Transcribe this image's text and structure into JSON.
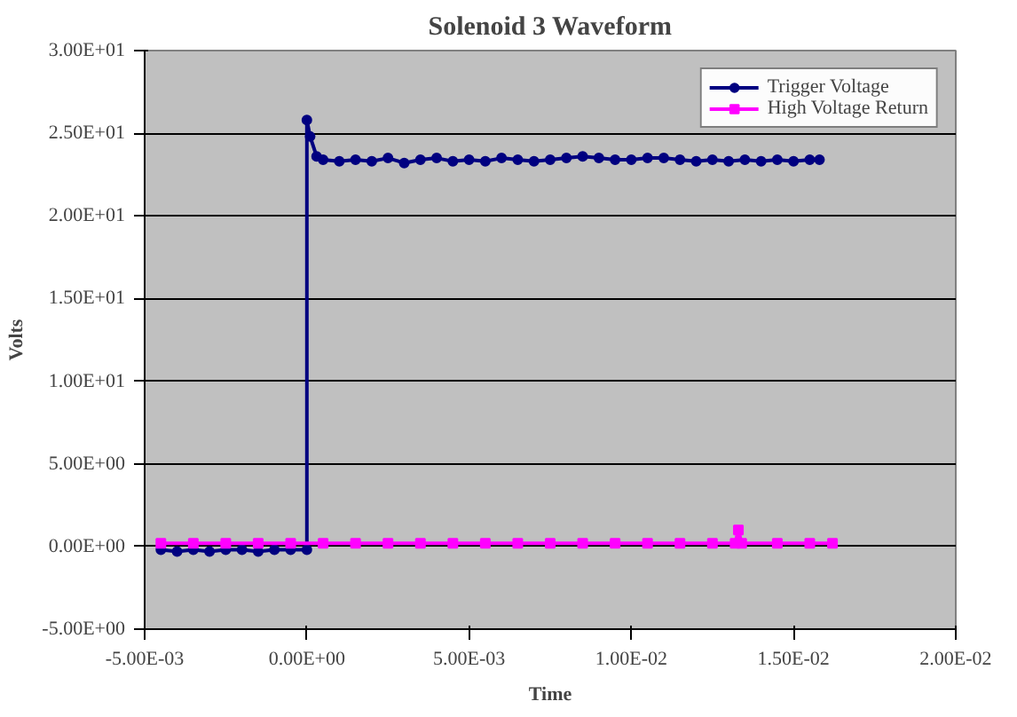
{
  "chart_data": {
    "type": "line",
    "title": "Solenoid 3 Waveform",
    "xlabel": "Time",
    "ylabel": "Volts",
    "xlim": [
      -0.005,
      0.02
    ],
    "ylim": [
      -5,
      30
    ],
    "xticks": [
      {
        "value": -0.005,
        "label": "-5.00E-03"
      },
      {
        "value": 0,
        "label": "0.00E+00"
      },
      {
        "value": 0.005,
        "label": "5.00E-03"
      },
      {
        "value": 0.01,
        "label": "1.00E-02"
      },
      {
        "value": 0.015,
        "label": "1.50E-02"
      },
      {
        "value": 0.02,
        "label": "2.00E-02"
      }
    ],
    "yticks": [
      {
        "value": -5,
        "label": "-5.00E+00"
      },
      {
        "value": 0,
        "label": "0.00E+00"
      },
      {
        "value": 5,
        "label": "5.00E+00"
      },
      {
        "value": 10,
        "label": "1.00E+01"
      },
      {
        "value": 15,
        "label": "1.50E+01"
      },
      {
        "value": 20,
        "label": "2.00E+01"
      },
      {
        "value": 25,
        "label": "2.50E+01"
      },
      {
        "value": 30,
        "label": "3.00E+01"
      }
    ],
    "grid": "y",
    "legend": "top right",
    "series": [
      {
        "name": "Trigger Voltage",
        "color": "#000080",
        "marker": "circle",
        "x": [
          -0.0045,
          -0.004,
          -0.0035,
          -0.003,
          -0.0025,
          -0.002,
          -0.0015,
          -0.001,
          -0.0005,
          0,
          0,
          0.0001,
          0.0003,
          0.0005,
          0.001,
          0.0015,
          0.002,
          0.0025,
          0.003,
          0.0035,
          0.004,
          0.0045,
          0.005,
          0.0055,
          0.006,
          0.0065,
          0.007,
          0.0075,
          0.008,
          0.0085,
          0.009,
          0.0095,
          0.01,
          0.0105,
          0.011,
          0.0115,
          0.012,
          0.0125,
          0.013,
          0.0135,
          0.014,
          0.0145,
          0.015,
          0.0155,
          0.0158
        ],
        "values": [
          -0.2,
          -0.3,
          -0.2,
          -0.3,
          -0.2,
          -0.2,
          -0.3,
          -0.2,
          -0.2,
          -0.2,
          25.8,
          24.8,
          23.6,
          23.4,
          23.3,
          23.4,
          23.3,
          23.5,
          23.2,
          23.4,
          23.5,
          23.3,
          23.4,
          23.3,
          23.5,
          23.4,
          23.3,
          23.4,
          23.5,
          23.6,
          23.5,
          23.4,
          23.4,
          23.5,
          23.5,
          23.4,
          23.3,
          23.4,
          23.3,
          23.4,
          23.3,
          23.4,
          23.3,
          23.4,
          23.4
        ]
      },
      {
        "name": "High Voltage Return",
        "color": "#ff00ff",
        "marker": "square",
        "x": [
          -0.0045,
          -0.0035,
          -0.0025,
          -0.0015,
          -0.0005,
          0.0005,
          0.0015,
          0.0025,
          0.0035,
          0.0045,
          0.0055,
          0.0065,
          0.0075,
          0.0085,
          0.0095,
          0.0105,
          0.0115,
          0.0125,
          0.0132,
          0.0133,
          0.0134,
          0.0145,
          0.0155,
          0.0162
        ],
        "values": [
          0.2,
          0.2,
          0.2,
          0.2,
          0.2,
          0.2,
          0.2,
          0.2,
          0.2,
          0.2,
          0.2,
          0.2,
          0.2,
          0.2,
          0.2,
          0.2,
          0.2,
          0.2,
          0.2,
          1.0,
          0.2,
          0.2,
          0.2,
          0.2
        ]
      }
    ]
  }
}
